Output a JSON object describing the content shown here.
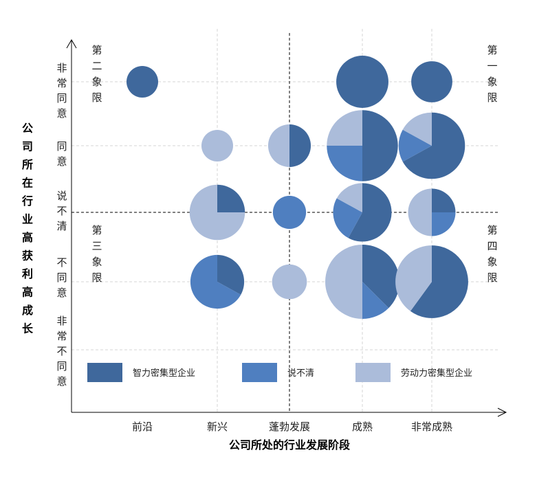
{
  "chart_data": {
    "type": "bubble-pie",
    "xlabel": "公司所处的行业发展阶段",
    "ylabel": "公司所在行业高获利高成长",
    "x_categories": [
      "前沿",
      "新兴",
      "蓬勃发展",
      "成熟",
      "非常成熟"
    ],
    "y_categories": [
      "非常不同意",
      "不同意",
      "说不清",
      "同意",
      "非常同意"
    ],
    "quadrants": [
      "第一象限",
      "第二象限",
      "第三象限",
      "第四象限"
    ],
    "legend_position": "bottom",
    "series": [
      {
        "name": "智力密集型企业",
        "color": "#3f689c"
      },
      {
        "name": "说不清",
        "color": "#4f7fc0"
      },
      {
        "name": "劳动力密集型企业",
        "color": "#abbcda"
      }
    ],
    "points": [
      {
        "x": "前沿",
        "y": "非常同意",
        "size": 1.0,
        "shares": [
          1,
          0,
          0
        ]
      },
      {
        "x": "成熟",
        "y": "非常同意",
        "size": 1.65,
        "shares": [
          1,
          0,
          0
        ]
      },
      {
        "x": "非常成熟",
        "y": "非常同意",
        "size": 1.3,
        "shares": [
          1,
          0,
          0
        ]
      },
      {
        "x": "新兴",
        "y": "同意",
        "size": 1.0,
        "shares": [
          0,
          0,
          1
        ]
      },
      {
        "x": "蓬勃发展",
        "y": "同意",
        "size": 1.35,
        "shares": [
          0.5,
          0,
          0.5
        ]
      },
      {
        "x": "成熟",
        "y": "同意",
        "size": 2.25,
        "shares": [
          0.5,
          0.25,
          0.25
        ]
      },
      {
        "x": "非常成熟",
        "y": "同意",
        "size": 2.1,
        "shares": [
          0.67,
          0.16,
          0.17
        ]
      },
      {
        "x": "新兴",
        "y": "说不清",
        "size": 1.75,
        "shares": [
          0.25,
          0,
          0.75
        ]
      },
      {
        "x": "蓬勃发展",
        "y": "说不清",
        "size": 1.05,
        "shares": [
          0,
          1,
          0
        ]
      },
      {
        "x": "成熟",
        "y": "说不清",
        "size": 1.85,
        "shares": [
          0.58,
          0.25,
          0.17
        ]
      },
      {
        "x": "非常成熟",
        "y": "说不清",
        "size": 1.5,
        "shares": [
          0.25,
          0.25,
          0.5
        ]
      },
      {
        "x": "新兴",
        "y": "不同意",
        "size": 1.7,
        "shares": [
          0.33,
          0.67,
          0
        ]
      },
      {
        "x": "蓬勃发展",
        "y": "不同意",
        "size": 1.1,
        "shares": [
          0,
          0,
          1
        ]
      },
      {
        "x": "成熟",
        "y": "不同意",
        "size": 2.35,
        "shares": [
          0.375,
          0.125,
          0.5
        ]
      },
      {
        "x": "非常成熟",
        "y": "不同意",
        "size": 2.3,
        "shares": [
          0.6,
          0,
          0.4
        ]
      }
    ]
  }
}
